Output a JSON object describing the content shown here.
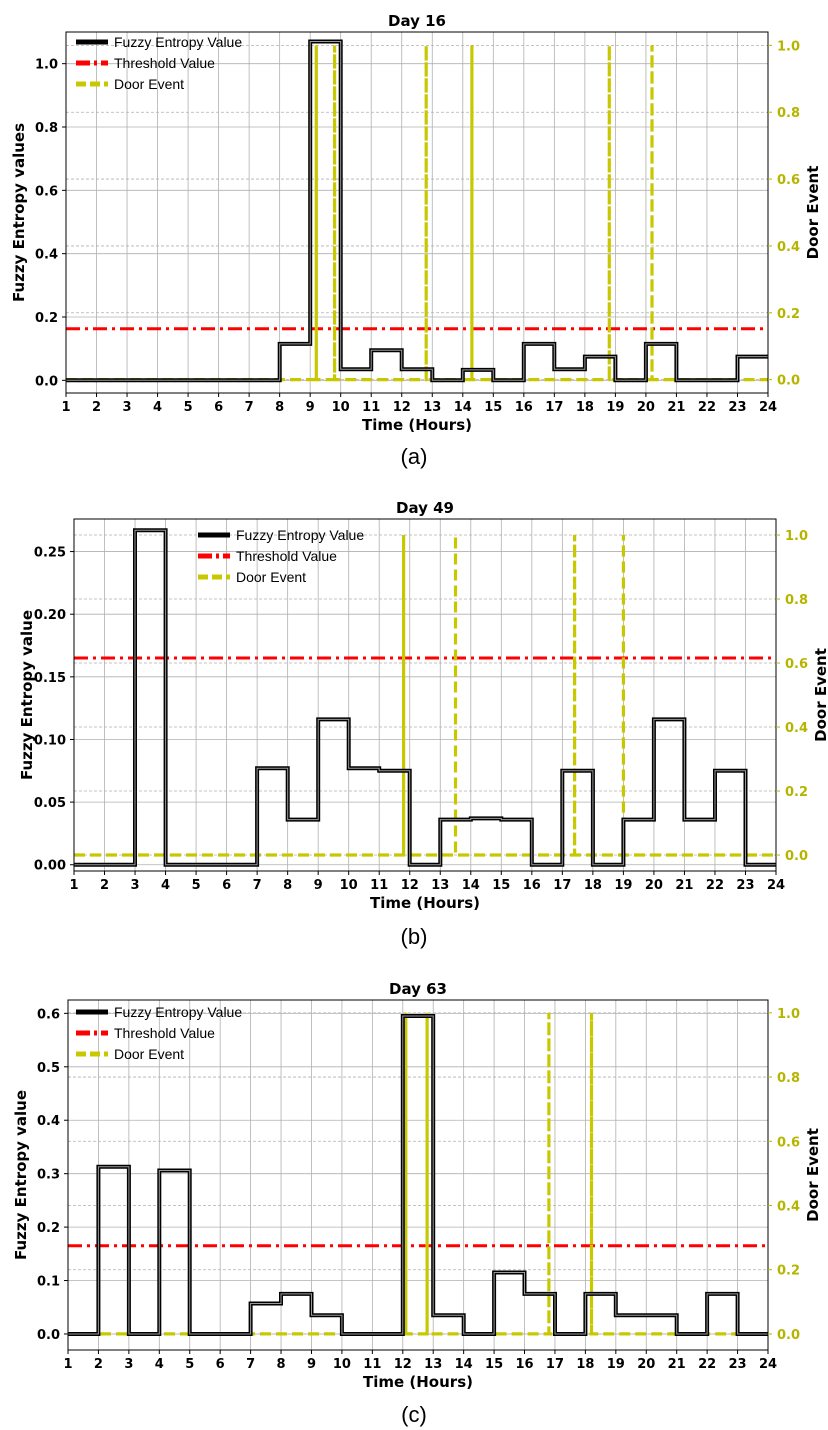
{
  "colors": {
    "entropy": "#000000",
    "threshold": "#ff0000",
    "door": "#c8c800",
    "right_axis": "#b5b500",
    "grid": "#b0b0b0"
  },
  "chart_data": [
    {
      "type": "line",
      "title": "Day 16",
      "caption": "(a)",
      "xlabel": "Time (Hours)",
      "ylabel": "Fuzzy Entropy values",
      "ylabel_right": "Door Event",
      "xlim": [
        1,
        24
      ],
      "ylim": [
        -0.04,
        1.1
      ],
      "ylim_right": [
        -0.04,
        1.04
      ],
      "xticks": [
        1,
        2,
        3,
        4,
        5,
        6,
        7,
        8,
        9,
        10,
        11,
        12,
        13,
        14,
        15,
        16,
        17,
        18,
        19,
        20,
        21,
        22,
        23,
        24
      ],
      "yticks": [
        0.0,
        0.2,
        0.4,
        0.6,
        0.8,
        1.0
      ],
      "yticks_right": [
        0.0,
        0.2,
        0.4,
        0.6,
        0.8,
        1.0
      ],
      "grid": true,
      "legend_position": "top-left",
      "legend": [
        "Fuzzy Entropy Value",
        "Threshold Value",
        "Door Event"
      ],
      "threshold": 0.163,
      "series": [
        {
          "name": "Fuzzy Entropy Value",
          "style": "step",
          "x": [
            1,
            2,
            3,
            4,
            5,
            6,
            7,
            8,
            9,
            10,
            11,
            12,
            13,
            14,
            15,
            16,
            17,
            18,
            19,
            20,
            21,
            22,
            23
          ],
          "values": [
            0,
            0,
            0,
            0,
            0,
            0,
            0,
            0.115,
            1.07,
            0.035,
            0.095,
            0.035,
            0,
            0.033,
            0,
            0.115,
            0.035,
            0.075,
            0,
            0.115,
            0,
            0,
            0.075
          ]
        },
        {
          "name": "Door Event",
          "style": "pulses",
          "x": [
            9.2,
            9.8,
            12.8,
            14.3,
            18.8,
            20.2
          ],
          "values": [
            1,
            1,
            1,
            1,
            1,
            1
          ]
        }
      ]
    },
    {
      "type": "line",
      "title": "Day 49",
      "caption": "(b)",
      "xlabel": "Time (Hours)",
      "ylabel": "Fuzzy Entropy value",
      "ylabel_right": "Door Event",
      "xlim": [
        1,
        24
      ],
      "ylim": [
        -0.005,
        0.276
      ],
      "ylim_right": [
        -0.05,
        1.05
      ],
      "xticks": [
        1,
        2,
        3,
        4,
        5,
        6,
        7,
        8,
        9,
        10,
        11,
        12,
        13,
        14,
        15,
        16,
        17,
        18,
        19,
        20,
        21,
        22,
        23,
        24
      ],
      "yticks": [
        0.0,
        0.05,
        0.1,
        0.15,
        0.2,
        0.25
      ],
      "yticks_right": [
        0.0,
        0.2,
        0.4,
        0.6,
        0.8,
        1.0
      ],
      "grid": true,
      "legend_position": "top-center",
      "legend": [
        "Fuzzy Entropy Value",
        "Threshold Value",
        "Door Event"
      ],
      "threshold": 0.165,
      "series": [
        {
          "name": "Fuzzy Entropy Value",
          "style": "step",
          "x": [
            1,
            2,
            3,
            4,
            5,
            6,
            7,
            8,
            9,
            10,
            11,
            12,
            13,
            14,
            15,
            16,
            17,
            18,
            19,
            20,
            21,
            22,
            23
          ],
          "values": [
            0,
            0,
            0.267,
            0,
            0,
            0,
            0.077,
            0.036,
            0.116,
            0.077,
            0.075,
            0,
            0.036,
            0.037,
            0.036,
            0,
            0.075,
            0,
            0.036,
            0.116,
            0.036,
            0.075,
            0
          ]
        },
        {
          "name": "Door Event",
          "style": "pulses",
          "x": [
            11.8,
            13.5,
            17.4,
            19.0
          ],
          "values": [
            1,
            1,
            1,
            1
          ]
        }
      ]
    },
    {
      "type": "line",
      "title": "Day 63",
      "caption": "(c)",
      "xlabel": "Time (Hours)",
      "ylabel": "Fuzzy Entropy value",
      "ylabel_right": "Door Event",
      "xlim": [
        1,
        24
      ],
      "ylim": [
        -0.03,
        0.625
      ],
      "ylim_right": [
        -0.05,
        1.04
      ],
      "xticks": [
        1,
        2,
        3,
        4,
        5,
        6,
        7,
        8,
        9,
        10,
        11,
        12,
        13,
        14,
        15,
        16,
        17,
        18,
        19,
        20,
        21,
        22,
        23,
        24
      ],
      "yticks": [
        0.0,
        0.1,
        0.2,
        0.3,
        0.4,
        0.5,
        0.6
      ],
      "yticks_right": [
        0.0,
        0.2,
        0.4,
        0.6,
        0.8,
        1.0
      ],
      "grid": true,
      "legend_position": "top-left",
      "legend": [
        "Fuzzy Entropy Value",
        "Threshold Value",
        "Door Event"
      ],
      "threshold": 0.165,
      "series": [
        {
          "name": "Fuzzy Entropy Value",
          "style": "step",
          "x": [
            1,
            2,
            3,
            4,
            5,
            6,
            7,
            8,
            9,
            10,
            11,
            12,
            13,
            14,
            15,
            16,
            17,
            18,
            19,
            20,
            21,
            22,
            23
          ],
          "values": [
            0,
            0.313,
            0,
            0.306,
            0,
            0,
            0.057,
            0.075,
            0.035,
            0,
            0,
            0.595,
            0.035,
            0,
            0.115,
            0.075,
            0,
            0.075,
            0.035,
            0.035,
            0,
            0.075,
            0
          ]
        },
        {
          "name": "Door Event",
          "style": "pulses",
          "x": [
            12.1,
            12.8,
            16.8,
            18.2
          ],
          "values": [
            1,
            1,
            1,
            1
          ]
        }
      ]
    }
  ]
}
